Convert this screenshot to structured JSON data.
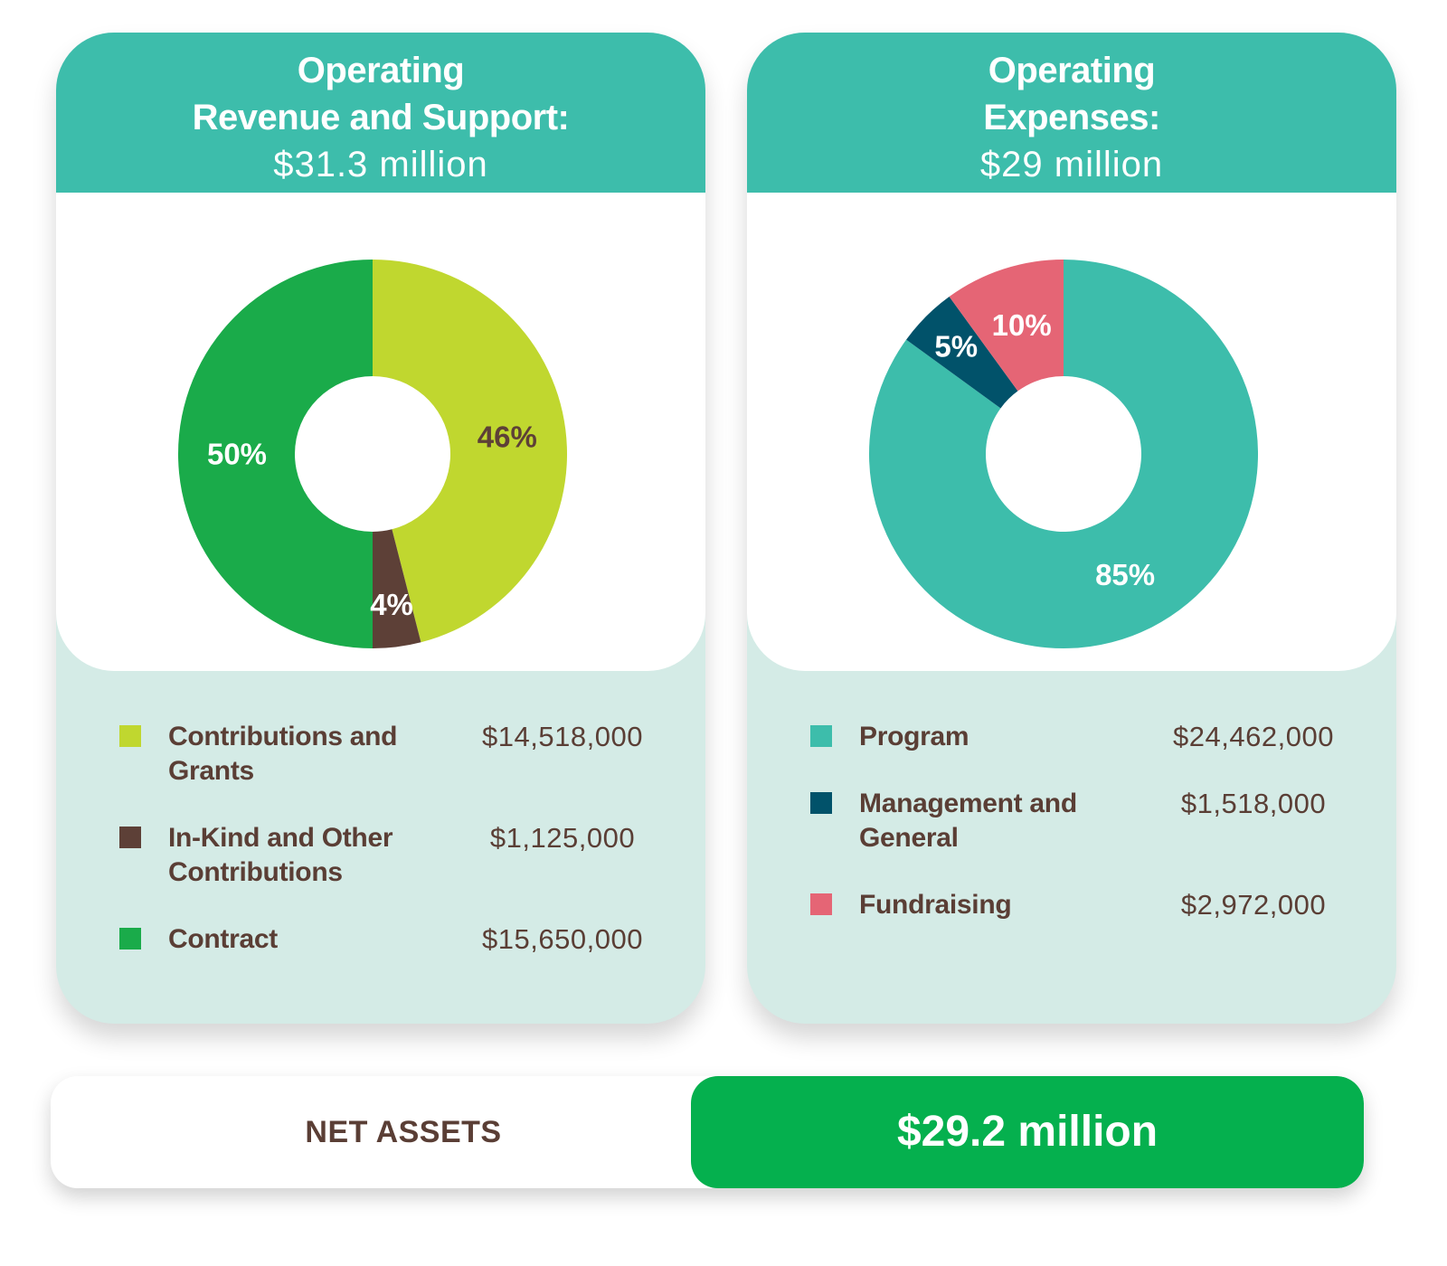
{
  "revenue": {
    "title_line1": "Operating",
    "title_line2": "Revenue and Support:",
    "total": "$31.3 million",
    "items": [
      {
        "label": "Contributions and Grants",
        "value": "$14,518,000",
        "color": "#c0d72f"
      },
      {
        "label": "In-Kind and Other Contributions",
        "value": "$1,125,000",
        "color": "#5d4037"
      },
      {
        "label": "Contract",
        "value": "$15,650,000",
        "color": "#1aab4a"
      }
    ]
  },
  "expenses": {
    "title_line1": "Operating",
    "title_line2": "Expenses:",
    "total": "$29 million",
    "items": [
      {
        "label": "Program",
        "value": "$24,462,000",
        "color": "#3dbdab"
      },
      {
        "label": "Management and General",
        "value": "$1,518,000",
        "color": "#01526a"
      },
      {
        "label": "Fundraising",
        "value": "$2,972,000",
        "color": "#e56575"
      }
    ]
  },
  "chart_data": [
    {
      "type": "pie",
      "labels": [
        "Contributions and Grants",
        "In-Kind and Other Contributions",
        "Contract"
      ],
      "values": [
        46,
        4,
        50
      ],
      "value_labels": [
        "46%",
        "4%",
        "50%"
      ],
      "colors": [
        "#c0d72f",
        "#5d4037",
        "#1aab4a"
      ],
      "label_colors": [
        "#5d4037",
        "#ffffff",
        "#ffffff"
      ],
      "donut": true
    },
    {
      "type": "pie",
      "labels": [
        "Program",
        "Management and General",
        "Fundraising"
      ],
      "values": [
        85,
        5,
        10
      ],
      "value_labels": [
        "85%",
        "5%",
        "10%"
      ],
      "colors": [
        "#3dbdab",
        "#01526a",
        "#e56575"
      ],
      "label_colors": [
        "#ffffff",
        "#ffffff",
        "#ffffff"
      ],
      "donut": true
    }
  ],
  "net_assets": {
    "label": "NET ASSETS",
    "value": "$29.2 million"
  }
}
